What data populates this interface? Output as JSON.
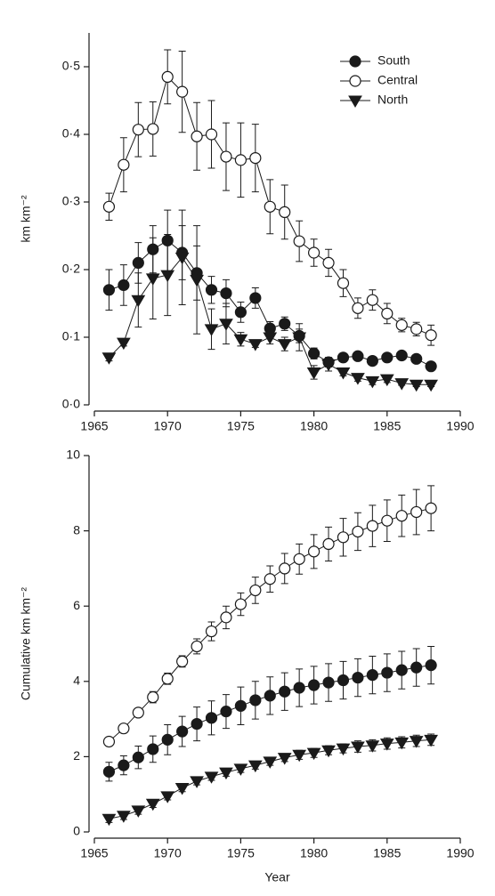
{
  "chart_data": [
    {
      "type": "line",
      "y_label": "km km⁻²",
      "x": [
        1966,
        1967,
        1968,
        1969,
        1970,
        1971,
        1972,
        1973,
        1974,
        1975,
        1976,
        1977,
        1978,
        1979,
        1980,
        1981,
        1982,
        1983,
        1984,
        1985,
        1986,
        1987,
        1988
      ],
      "xlim": [
        1965,
        1990
      ],
      "xticks": [
        1965,
        1970,
        1975,
        1980,
        1985,
        1990
      ],
      "ylim": [
        0,
        0.55
      ],
      "yticks": [
        {
          "value": 0,
          "label": "0·0"
        },
        {
          "value": 0.1,
          "label": "0·1"
        },
        {
          "value": 0.2,
          "label": "0·2"
        },
        {
          "value": 0.3,
          "label": "0·3"
        },
        {
          "value": 0.4,
          "label": "0·4"
        },
        {
          "value": 0.5,
          "label": "0·5"
        }
      ],
      "legend": "upper right",
      "series": [
        {
          "name": "South",
          "marker": "filled-circle",
          "color": "#1a1a1a",
          "values": [
            0.17,
            0.177,
            0.21,
            0.23,
            0.243,
            0.225,
            0.195,
            0.17,
            0.165,
            0.137,
            0.158,
            0.113,
            0.12,
            0.102,
            0.076,
            0.063,
            0.07,
            0.072,
            0.065,
            0.07,
            0.073,
            0.068,
            0.057
          ],
          "errors": [
            0.03,
            0.03,
            0.03,
            0.035,
            0.045,
            0.04,
            0.04,
            0.02,
            0.02,
            0.015,
            0.015,
            0.01,
            0.01,
            0.01,
            0.008,
            0.007,
            0.006,
            0.006,
            0.006,
            0.006,
            0.006,
            0.005,
            0.005
          ]
        },
        {
          "name": "Central",
          "marker": "open-circle",
          "color": "#1a1a1a",
          "values": [
            0.293,
            0.355,
            0.407,
            0.408,
            0.485,
            0.463,
            0.397,
            0.4,
            0.367,
            0.362,
            0.365,
            0.293,
            0.285,
            0.242,
            0.225,
            0.21,
            0.18,
            0.143,
            0.155,
            0.135,
            0.118,
            0.112,
            0.103
          ],
          "errors": [
            0.02,
            0.04,
            0.04,
            0.04,
            0.04,
            0.06,
            0.05,
            0.05,
            0.05,
            0.055,
            0.05,
            0.04,
            0.04,
            0.03,
            0.02,
            0.02,
            0.02,
            0.015,
            0.015,
            0.015,
            0.01,
            0.01,
            0.015
          ]
        },
        {
          "name": "North",
          "marker": "triangle-down",
          "color": "#1a1a1a",
          "values": [
            0.07,
            0.092,
            0.155,
            0.187,
            0.192,
            0.218,
            0.185,
            0.112,
            0.12,
            0.097,
            0.09,
            0.1,
            0.09,
            0.1,
            0.048,
            0.06,
            0.048,
            0.04,
            0.035,
            0.038,
            0.032,
            0.03,
            0.03
          ],
          "errors": [
            0.005,
            0.005,
            0.04,
            0.06,
            0.06,
            0.07,
            0.08,
            0.03,
            0.03,
            0.01,
            0.005,
            0.01,
            0.01,
            0.02,
            0.01,
            0.01,
            0.005,
            0.005,
            0.005,
            0.005,
            0.003,
            0.003,
            0.003
          ]
        }
      ]
    },
    {
      "type": "line",
      "x_label": "Year",
      "y_label": "Cumulative km km⁻²",
      "x": [
        1966,
        1967,
        1968,
        1969,
        1970,
        1971,
        1972,
        1973,
        1974,
        1975,
        1976,
        1977,
        1978,
        1979,
        1980,
        1981,
        1982,
        1983,
        1984,
        1985,
        1986,
        1987,
        1988
      ],
      "xlim": [
        1965,
        1990
      ],
      "xticks": [
        1965,
        1970,
        1975,
        1980,
        1985,
        1990
      ],
      "ylim": [
        0,
        10
      ],
      "yticks": [
        0,
        2,
        4,
        6,
        8,
        10
      ],
      "series": [
        {
          "marker": "filled-circle",
          "color": "#1a1a1a",
          "values": [
            1.6,
            1.77,
            1.98,
            2.2,
            2.45,
            2.67,
            2.87,
            3.03,
            3.2,
            3.35,
            3.5,
            3.62,
            3.73,
            3.83,
            3.9,
            3.97,
            4.03,
            4.1,
            4.17,
            4.23,
            4.3,
            4.37,
            4.43
          ],
          "errors": [
            0.25,
            0.25,
            0.3,
            0.35,
            0.4,
            0.4,
            0.45,
            0.45,
            0.45,
            0.5,
            0.5,
            0.5,
            0.5,
            0.5,
            0.5,
            0.5,
            0.5,
            0.5,
            0.5,
            0.5,
            0.5,
            0.5,
            0.5
          ]
        },
        {
          "marker": "open-circle",
          "color": "#1a1a1a",
          "values": [
            2.4,
            2.75,
            3.17,
            3.58,
            4.07,
            4.53,
            4.93,
            5.33,
            5.7,
            6.05,
            6.42,
            6.72,
            7.0,
            7.25,
            7.45,
            7.65,
            7.83,
            7.98,
            8.13,
            8.27,
            8.4,
            8.5,
            8.6
          ],
          "errors": [
            0.05,
            0.1,
            0.1,
            0.15,
            0.15,
            0.15,
            0.2,
            0.25,
            0.3,
            0.3,
            0.35,
            0.35,
            0.4,
            0.4,
            0.45,
            0.45,
            0.5,
            0.5,
            0.55,
            0.55,
            0.55,
            0.6,
            0.6
          ]
        },
        {
          "marker": "triangle-down",
          "color": "#1a1a1a",
          "values": [
            0.35,
            0.43,
            0.57,
            0.75,
            0.95,
            1.17,
            1.35,
            1.47,
            1.58,
            1.68,
            1.77,
            1.87,
            1.97,
            2.05,
            2.1,
            2.17,
            2.22,
            2.27,
            2.3,
            2.35,
            2.38,
            2.42,
            2.45
          ],
          "errors": [
            0.1,
            0.1,
            0.1,
            0.1,
            0.1,
            0.1,
            0.1,
            0.1,
            0.1,
            0.1,
            0.1,
            0.1,
            0.1,
            0.12,
            0.12,
            0.12,
            0.12,
            0.15,
            0.15,
            0.15,
            0.15,
            0.15,
            0.15
          ]
        }
      ]
    }
  ]
}
